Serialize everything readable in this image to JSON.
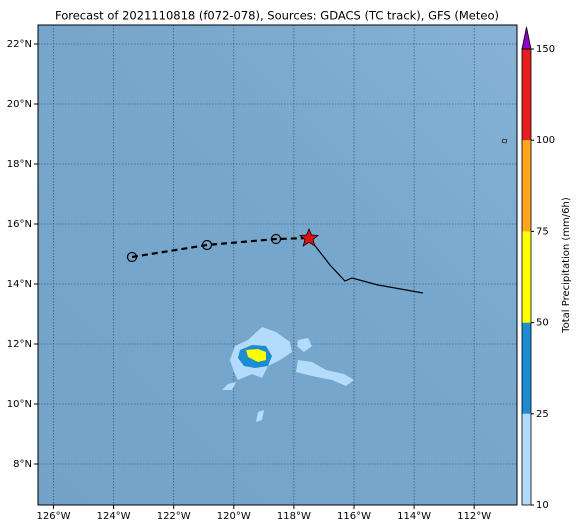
{
  "header": {
    "title": "Forecast of 2021110818 (f072-078), Sources: GDACS (TC track), GFS (Meteo)"
  },
  "map": {
    "lat_labels": [
      "22°N",
      "20°N",
      "18°N",
      "16°N",
      "14°N",
      "12°N",
      "10°N",
      "8°N"
    ],
    "lon_labels": [
      "126°W",
      "124°W",
      "122°W",
      "120°W",
      "118°W",
      "116°W",
      "114°W",
      "112°W"
    ]
  },
  "colorbar": {
    "label": "Total Precipitation (mm/6h)",
    "ticks": [
      10,
      25,
      50,
      75,
      100,
      150
    ],
    "colors": [
      "#b4dcfa",
      "#1e8cd2",
      "#ffff00",
      "#ffa51e",
      "#e61e1e"
    ],
    "extend_color": "#8c00c8"
  }
}
